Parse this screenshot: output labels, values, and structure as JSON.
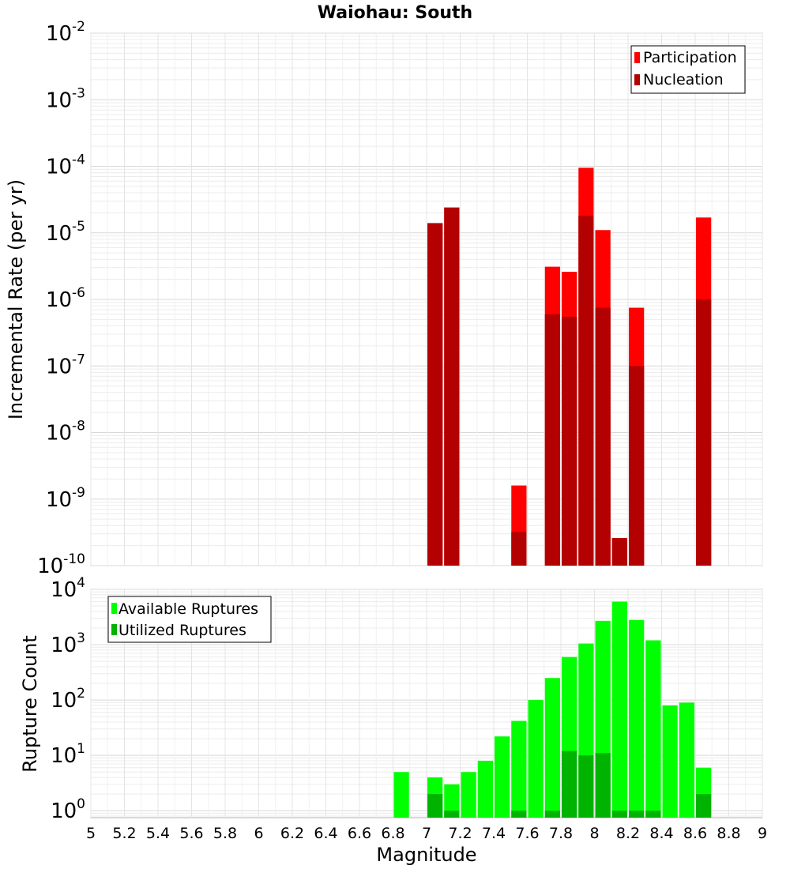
{
  "chart_data": [
    {
      "type": "bar",
      "title": "Waiohau: South",
      "ylabel": "Incremental Rate (per yr)",
      "xlabel": "",
      "xlim": [
        5,
        9
      ],
      "ylim": [
        1e-10,
        0.01
      ],
      "yscale": "log",
      "yticks": [
        {
          "base": "10",
          "exp": "-10"
        },
        {
          "base": "10",
          "exp": "-9"
        },
        {
          "base": "10",
          "exp": "-8"
        },
        {
          "base": "10",
          "exp": "-7"
        },
        {
          "base": "10",
          "exp": "-6"
        },
        {
          "base": "10",
          "exp": "-5"
        },
        {
          "base": "10",
          "exp": "-4"
        },
        {
          "base": "10",
          "exp": "-3"
        },
        {
          "base": "10",
          "exp": "-2"
        }
      ],
      "grid": true,
      "legend_position": "top-right",
      "bar_width": 0.1,
      "series": [
        {
          "name": "Participation",
          "color": "#ff0000",
          "x": [
            7.05,
            7.15,
            7.55,
            7.75,
            7.85,
            7.95,
            8.05,
            8.15,
            8.25,
            8.65
          ],
          "values": [
            1.4e-05,
            2.4e-05,
            1.6e-09,
            3.1e-06,
            2.6e-06,
            9.5e-05,
            1.1e-05,
            2.6e-10,
            7.5e-07,
            1.7e-05
          ]
        },
        {
          "name": "Nucleation",
          "color": "#b30000",
          "x": [
            7.05,
            7.15,
            7.55,
            7.75,
            7.85,
            7.95,
            8.05,
            8.15,
            8.25,
            8.65
          ],
          "values": [
            1.4e-05,
            2.4e-05,
            3.2e-10,
            6e-07,
            5.5e-07,
            1.8e-05,
            7.5e-07,
            2.6e-10,
            1e-07,
            1e-06
          ]
        }
      ]
    },
    {
      "type": "bar",
      "title": "",
      "ylabel": "Rupture Count",
      "xlabel": "Magnitude",
      "xlim": [
        5,
        9
      ],
      "ylim": [
        0.75,
        10000
      ],
      "yscale": "log",
      "yticks": [
        {
          "base": "10",
          "exp": "0"
        },
        {
          "base": "10",
          "exp": "1"
        },
        {
          "base": "10",
          "exp": "2"
        },
        {
          "base": "10",
          "exp": "3"
        },
        {
          "base": "10",
          "exp": "4"
        }
      ],
      "xticks": [
        "5",
        "5.2",
        "5.4",
        "5.6",
        "5.8",
        "6",
        "6.2",
        "6.4",
        "6.6",
        "6.8",
        "7",
        "7.2",
        "7.4",
        "7.6",
        "7.8",
        "8",
        "8.2",
        "8.4",
        "8.6",
        "8.8",
        "9"
      ],
      "grid": true,
      "legend_position": "top-left",
      "bar_width": 0.1,
      "series": [
        {
          "name": "Available Ruptures",
          "color": "#00ff00",
          "x": [
            6.85,
            7.05,
            7.15,
            7.25,
            7.35,
            7.45,
            7.55,
            7.65,
            7.75,
            7.85,
            7.95,
            8.05,
            8.15,
            8.25,
            8.35,
            8.45,
            8.55,
            8.65
          ],
          "values": [
            5,
            4,
            3,
            5,
            8,
            22,
            42,
            100,
            250,
            600,
            1050,
            2700,
            6000,
            2800,
            1200,
            80,
            90,
            6
          ]
        },
        {
          "name": "Utilized Ruptures",
          "color": "#00b300",
          "x": [
            7.05,
            7.15,
            7.55,
            7.75,
            7.85,
            7.95,
            8.05,
            8.15,
            8.25,
            8.35,
            8.65
          ],
          "values": [
            2,
            1,
            1,
            1,
            12,
            10,
            11,
            1,
            1,
            1,
            2
          ]
        }
      ]
    }
  ]
}
